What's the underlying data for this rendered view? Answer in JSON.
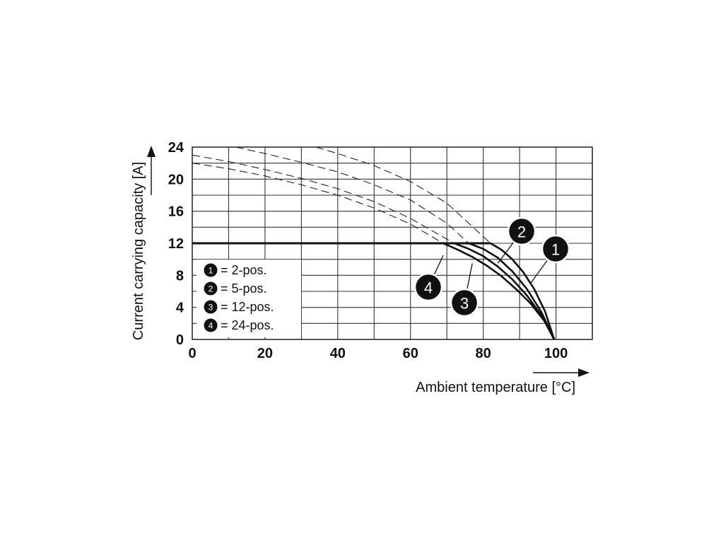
{
  "chart_data": {
    "type": "line",
    "xlabel": "Ambient temperature [°C]",
    "ylabel": "Current carrying capacity [A]",
    "xlim": [
      0,
      110
    ],
    "ylim": [
      0,
      24
    ],
    "x_ticks": [
      "0",
      "20",
      "40",
      "60",
      "80",
      "100"
    ],
    "y_ticks": [
      "0",
      "4",
      "8",
      "12",
      "16",
      "20",
      "24"
    ],
    "grid": true,
    "legend_position": "bottom-left",
    "legend": [
      {
        "marker": "1",
        "text": "= 2-pos."
      },
      {
        "marker": "2",
        "text": "= 5-pos."
      },
      {
        "marker": "3",
        "text": "= 12-pos."
      },
      {
        "marker": "4",
        "text": "= 24-pos."
      }
    ],
    "limit_line": {
      "y": 12,
      "x": [
        0,
        82
      ]
    },
    "series": [
      {
        "marker": "1",
        "x": [
          82,
          85,
          88,
          91,
          94,
          97,
          99.5
        ],
        "y": [
          12,
          11.2,
          10.0,
          8.4,
          6.3,
          3.5,
          0
        ]
      },
      {
        "marker": "2",
        "x": [
          76,
          80,
          84,
          88,
          92,
          96,
          99.5
        ],
        "y": [
          12,
          11.3,
          10.2,
          8.5,
          6.3,
          3.4,
          0
        ]
      },
      {
        "marker": "3",
        "x": [
          72,
          76,
          80,
          84,
          88,
          92,
          96,
          99.5
        ],
        "y": [
          12,
          11.3,
          10.4,
          9.1,
          7.5,
          5.5,
          3.0,
          0
        ]
      },
      {
        "marker": "4",
        "x": [
          69,
          73,
          77,
          81,
          85,
          89,
          93,
          97,
          99.5
        ],
        "y": [
          12,
          11.2,
          10.3,
          9.2,
          7.9,
          6.3,
          4.5,
          2.2,
          0
        ]
      }
    ],
    "dashed_extensions": [
      {
        "marker": "1",
        "x": [
          34,
          40,
          50,
          60,
          70,
          82
        ],
        "y": [
          24,
          23.2,
          21.7,
          19.7,
          17,
          12
        ]
      },
      {
        "marker": "2",
        "x": [
          12,
          20,
          30,
          40,
          50,
          60,
          70,
          76
        ],
        "y": [
          24,
          23.2,
          22.1,
          20.9,
          19.3,
          17.4,
          14.5,
          12
        ]
      },
      {
        "marker": "3",
        "x": [
          0,
          10,
          20,
          30,
          40,
          50,
          60,
          72
        ],
        "y": [
          23,
          22.2,
          21.2,
          20.1,
          18.8,
          17.2,
          15.1,
          12
        ]
      },
      {
        "marker": "4",
        "x": [
          0,
          10,
          20,
          30,
          40,
          50,
          60,
          69
        ],
        "y": [
          22,
          21.3,
          20.4,
          19.3,
          18.0,
          16.4,
          14.4,
          12
        ]
      }
    ],
    "callouts": [
      {
        "marker": "1",
        "target": [
          93,
          7
        ]
      },
      {
        "marker": "2",
        "target": [
          84,
          9.5
        ]
      },
      {
        "marker": "3",
        "target": [
          77,
          9.5
        ]
      },
      {
        "marker": "4",
        "target": [
          69,
          10.5
        ]
      }
    ]
  }
}
